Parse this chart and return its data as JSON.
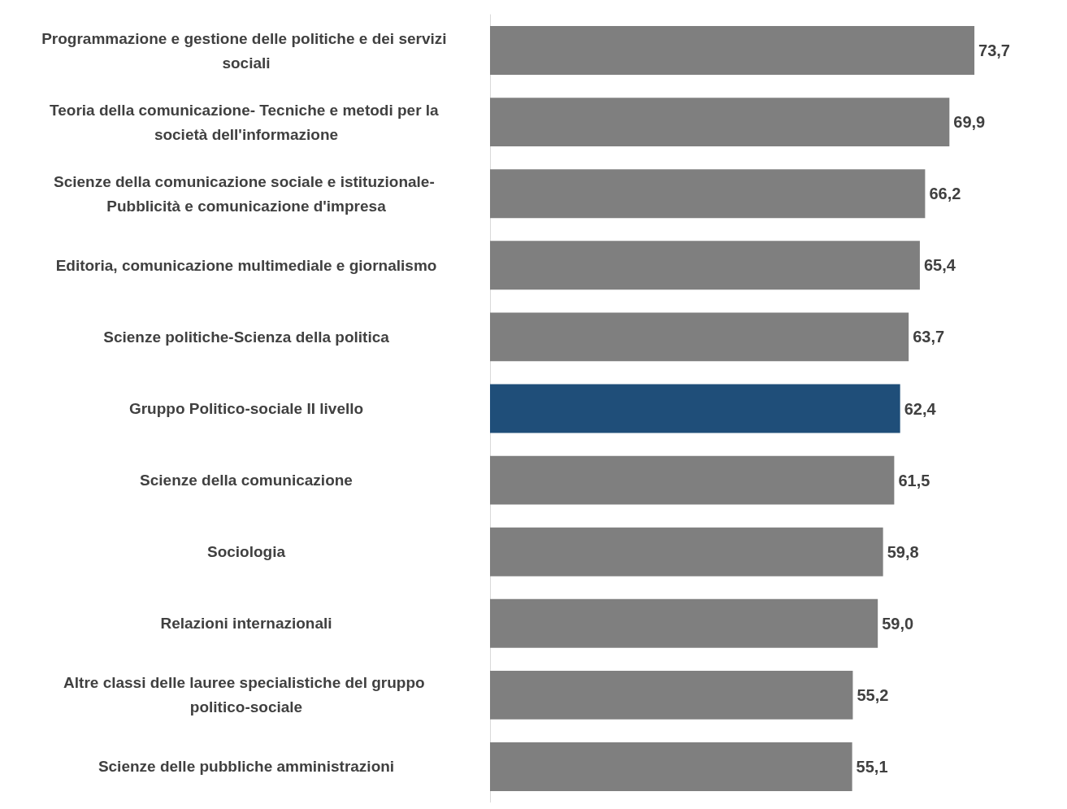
{
  "chart_data": {
    "type": "bar",
    "orientation": "horizontal",
    "categories": [
      "Programmazione e gestione delle politiche e dei servizi sociali",
      "Teoria della comunicazione- Tecniche e metodi per la società dell'informazione",
      "Scienze della comunicazione sociale e istituzionale- Pubblicità e comunicazione d'impresa",
      "Editoria, comunicazione multimediale e giornalismo",
      "Scienze politiche-Scienza della politica",
      "Gruppo Politico-sociale II livello",
      "Scienze della comunicazione",
      "Sociologia",
      "Relazioni internazionali",
      "Altre classi delle lauree specialistiche del gruppo politico-sociale",
      "Scienze delle pubbliche amministrazioni"
    ],
    "values": [
      73.7,
      69.9,
      66.2,
      65.4,
      63.7,
      62.4,
      61.5,
      59.8,
      59.0,
      55.2,
      55.1
    ],
    "value_labels": [
      "73,7",
      "69,9",
      "66,2",
      "65,4",
      "63,7",
      "62,4",
      "61,5",
      "59,8",
      "59,0",
      "55,2",
      "55,1"
    ],
    "colors": [
      "#7f7f7f",
      "#7f7f7f",
      "#7f7f7f",
      "#7f7f7f",
      "#7f7f7f",
      "#1f4e79",
      "#7f7f7f",
      "#7f7f7f",
      "#7f7f7f",
      "#7f7f7f",
      "#7f7f7f"
    ]
  }
}
